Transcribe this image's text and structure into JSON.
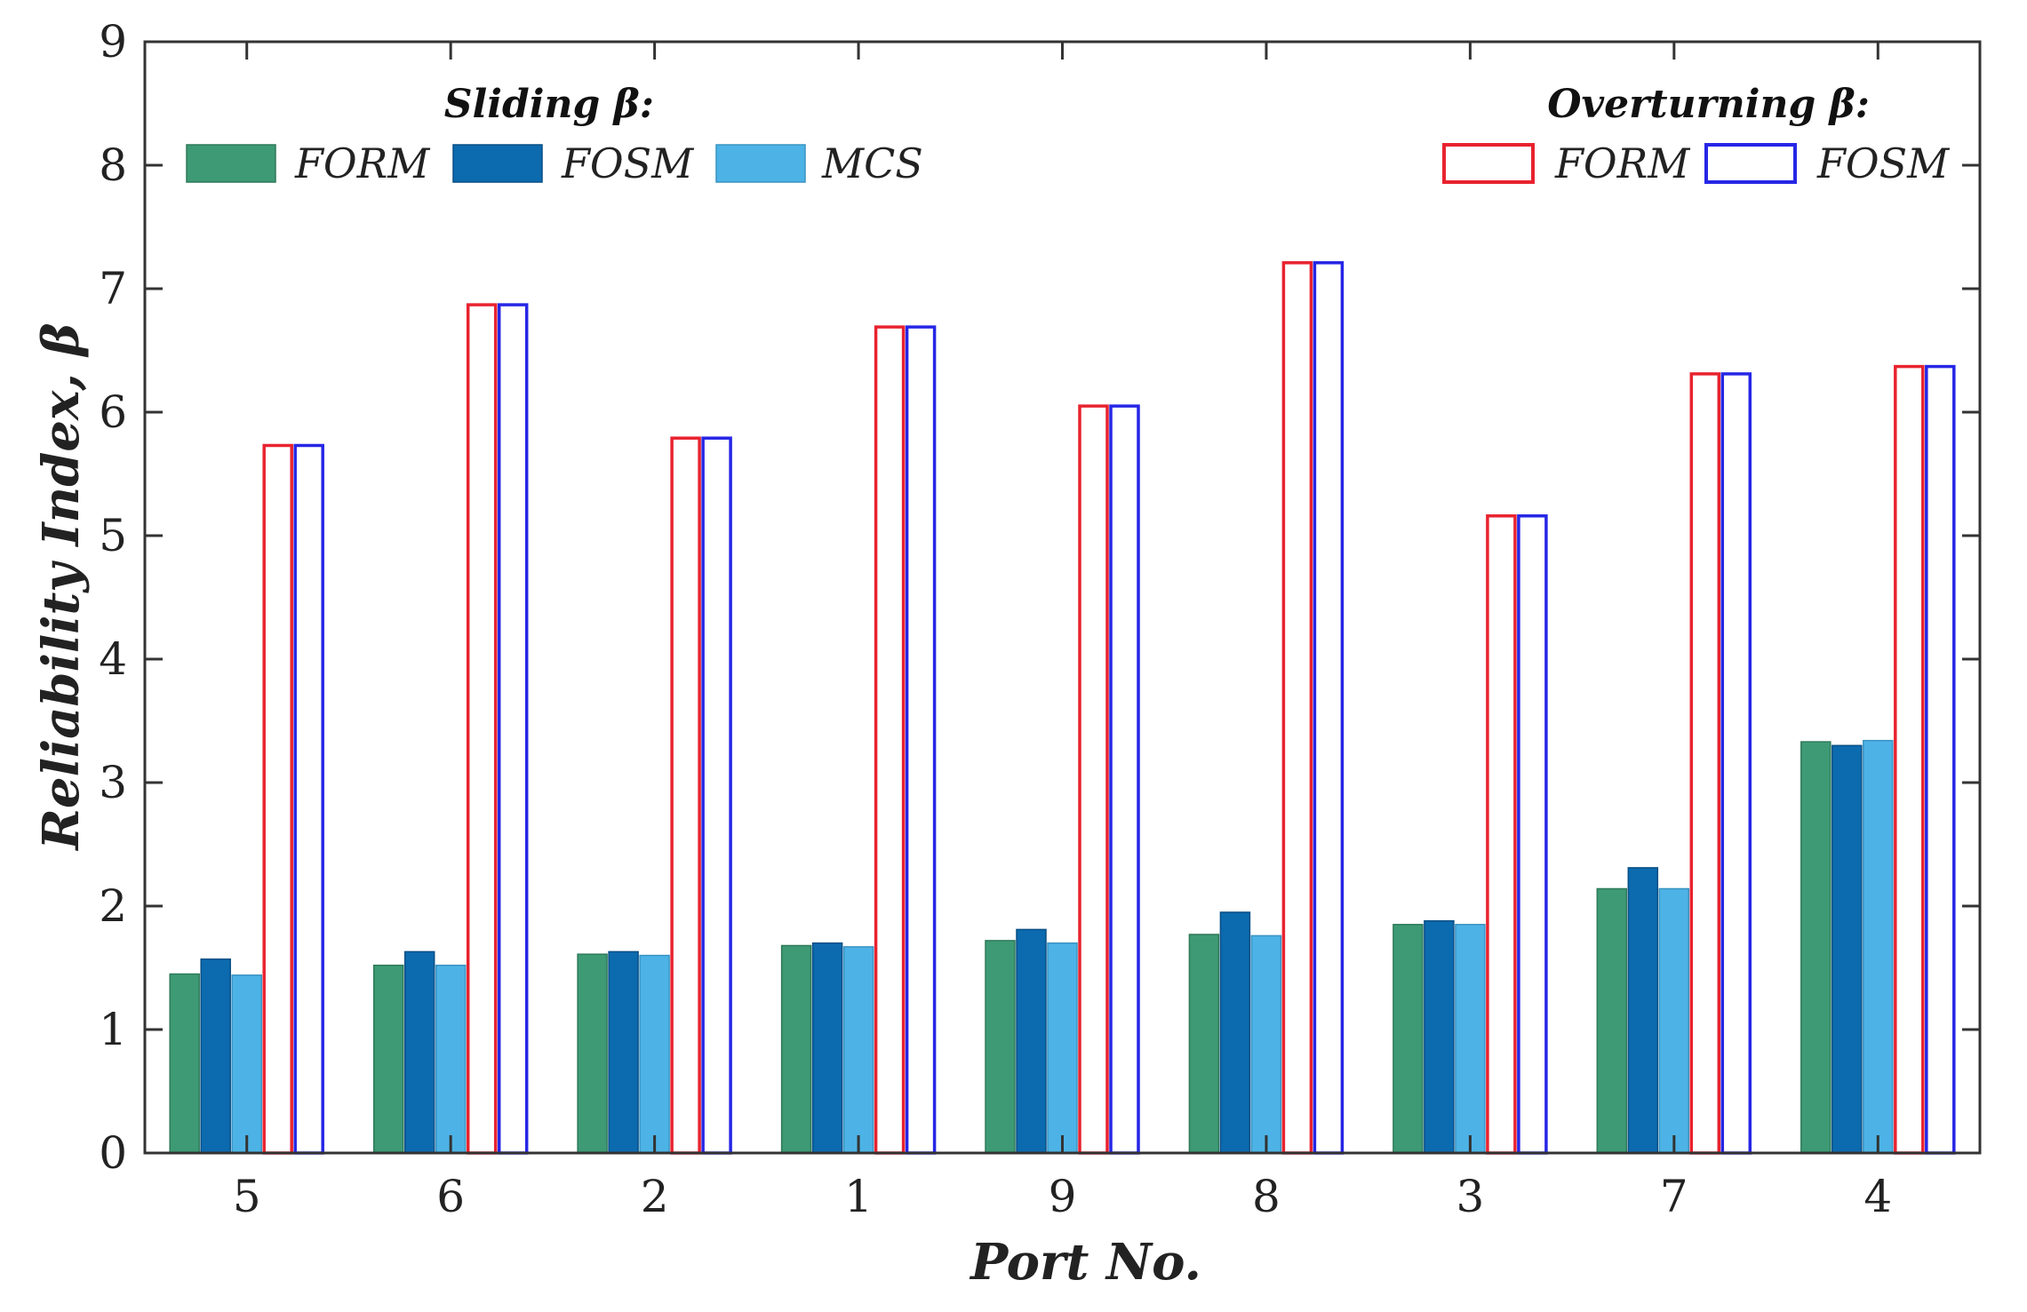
{
  "chart_data": {
    "type": "bar",
    "title": "",
    "xlabel": "Port No.",
    "ylabel": "Reliability Index, β",
    "ylim": [
      0,
      9
    ],
    "yticks": [
      0,
      1,
      2,
      3,
      4,
      5,
      6,
      7,
      8,
      9
    ],
    "grid": false,
    "categories": [
      "5",
      "6",
      "2",
      "1",
      "9",
      "8",
      "3",
      "7",
      "4"
    ],
    "legend_groups": [
      {
        "title": "Sliding β:",
        "placement": "top-left",
        "series_indices": [
          0,
          1,
          2
        ]
      },
      {
        "title": "Overturning β:",
        "placement": "top-right",
        "series_indices": [
          3,
          4
        ]
      }
    ],
    "series": [
      {
        "name": "FORM",
        "group": "Sliding β",
        "style": "filled",
        "fill": "#3d9a74",
        "stroke": "#2f7a5a",
        "values": [
          1.45,
          1.52,
          1.61,
          1.68,
          1.72,
          1.77,
          1.85,
          2.14,
          3.33
        ]
      },
      {
        "name": "FOSM",
        "group": "Sliding β",
        "style": "filled",
        "fill": "#0c6aae",
        "stroke": "#084f86",
        "values": [
          1.57,
          1.63,
          1.63,
          1.7,
          1.81,
          1.95,
          1.88,
          2.31,
          3.3
        ]
      },
      {
        "name": "MCS",
        "group": "Sliding β",
        "style": "filled",
        "fill": "#4db3e6",
        "stroke": "#3a93c2",
        "values": [
          1.44,
          1.52,
          1.6,
          1.67,
          1.7,
          1.76,
          1.85,
          2.14,
          3.34
        ]
      },
      {
        "name": "FORM",
        "group": "Overturning β",
        "style": "outline",
        "fill": "#ffffff",
        "stroke": "#e8232f",
        "values": [
          5.73,
          6.87,
          5.79,
          6.69,
          6.05,
          7.21,
          5.16,
          6.31,
          6.37
        ]
      },
      {
        "name": "FOSM",
        "group": "Overturning β",
        "style": "outline",
        "fill": "#ffffff",
        "stroke": "#2626e6",
        "values": [
          5.73,
          6.87,
          5.79,
          6.69,
          6.05,
          7.21,
          5.16,
          6.31,
          6.37
        ]
      }
    ]
  }
}
